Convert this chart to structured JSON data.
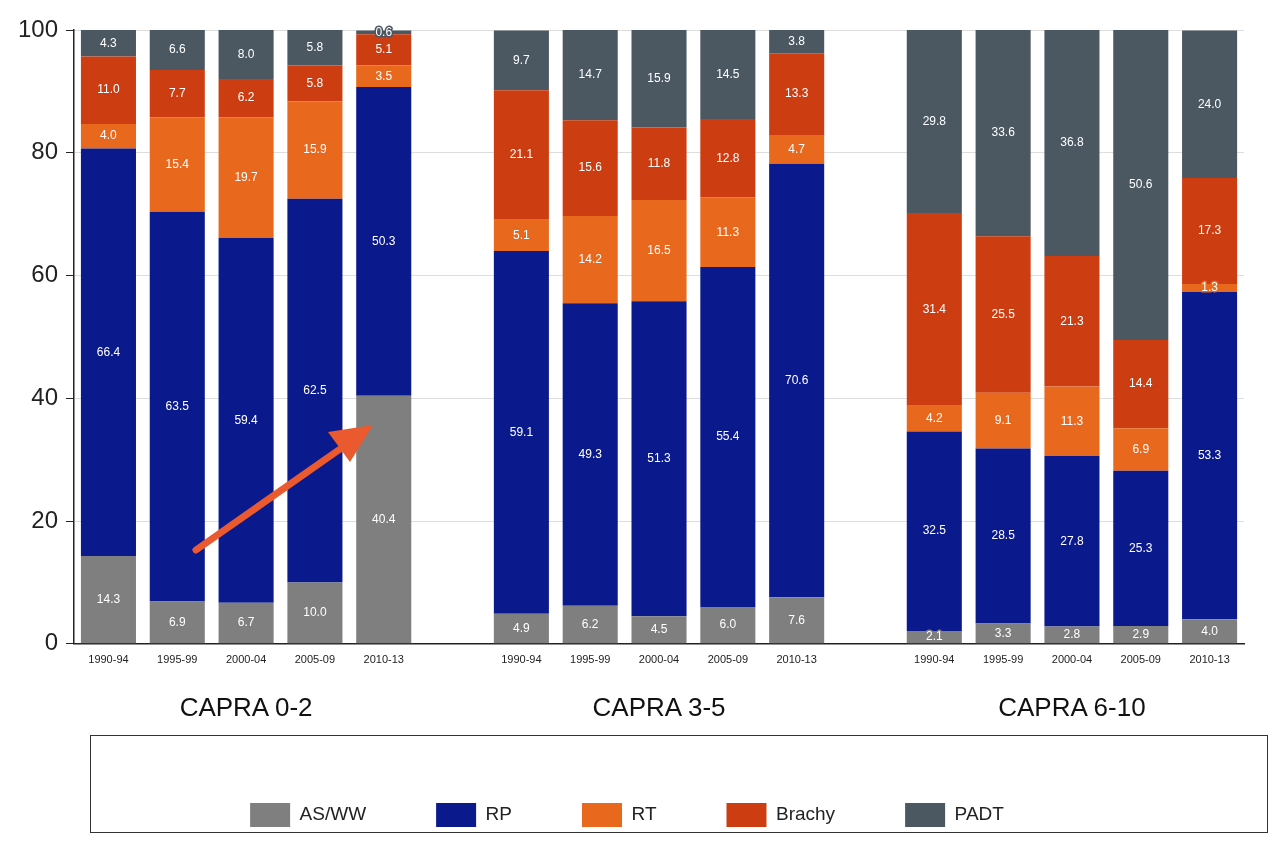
{
  "chart_data": {
    "type": "bar",
    "stacked": true,
    "categories": [
      "1990-94",
      "1995-99",
      "2000-04",
      "2005-09",
      "2010-13",
      null,
      "1990-94",
      "1995-99",
      "2000-04",
      "2005-09",
      "2010-13",
      null,
      "1990-94",
      "1995-99",
      "2000-04",
      "2005-09",
      "2010-13"
    ],
    "annotations": [
      "CAPRA 0-2",
      "CAPRA 3-5",
      "CAPRA 6-10"
    ],
    "ylim": [
      0,
      100
    ],
    "yticks": [
      0,
      20,
      40,
      60,
      80,
      100
    ],
    "grid": "y",
    "legend": "bottom",
    "series": [
      {
        "name": "AS/WW",
        "color": "#7f7f7f",
        "values": [
          14.3,
          6.9,
          6.7,
          10.0,
          40.4,
          null,
          4.9,
          6.2,
          4.5,
          6.0,
          7.6,
          null,
          2.1,
          3.3,
          2.8,
          2.9,
          4.0
        ],
        "value_labels": [
          "14.3",
          "6.9",
          "6.7",
          "10.0",
          "40.4",
          null,
          "4.9",
          "6.2",
          "4.5",
          "6.0",
          "7.6",
          null,
          "2.1",
          "3.3",
          "2.8",
          "2.9",
          "4.0"
        ]
      },
      {
        "name": "RP",
        "color": "#0a1a8c",
        "values": [
          66.4,
          63.5,
          59.4,
          62.5,
          50.3,
          null,
          59.1,
          49.3,
          51.3,
          55.4,
          70.6,
          null,
          32.5,
          28.5,
          27.8,
          25.3,
          53.3
        ],
        "value_labels": [
          "66.4",
          "63.5",
          "59.4",
          "62.5",
          "50.3",
          null,
          "59.1",
          "49.3",
          "51.3",
          "55.4",
          "70.6",
          null,
          "32.5",
          "28.5",
          "27.8",
          "25.3",
          "53.3"
        ]
      },
      {
        "name": "RT",
        "color": "#e8681e",
        "values": [
          4.0,
          15.4,
          19.7,
          15.9,
          3.5,
          null,
          5.1,
          14.2,
          16.5,
          11.3,
          4.7,
          null,
          4.2,
          9.1,
          11.3,
          6.9,
          1.3
        ],
        "value_labels": [
          "4.0",
          "15.4",
          "19.7",
          "15.9",
          "3.5",
          null,
          "5.1",
          "14.2",
          "16.5",
          "11.3",
          "4.7",
          null,
          "4.2",
          "9.1",
          "11.3",
          "6.9",
          "1.3"
        ]
      },
      {
        "name": "Brachy",
        "color": "#cc3d12",
        "values": [
          11.0,
          7.7,
          6.2,
          5.8,
          5.1,
          null,
          21.1,
          15.6,
          11.8,
          12.8,
          13.3,
          null,
          31.4,
          25.5,
          21.3,
          14.4,
          17.3
        ],
        "value_labels": [
          "11.0",
          "7.7",
          "6.2",
          "5.8",
          "5.1",
          null,
          "21.1",
          "15.6",
          "11.8",
          "12.8",
          "13.3",
          null,
          "31.4",
          "25.5",
          "21.3",
          "14.4",
          "17.3"
        ]
      },
      {
        "name": "PADT",
        "color": "#4b5862",
        "values": [
          4.3,
          6.6,
          8.0,
          5.8,
          0.6,
          null,
          9.7,
          14.7,
          15.9,
          14.5,
          3.8,
          null,
          29.8,
          33.6,
          36.8,
          50.6,
          24.0
        ],
        "value_labels": [
          "4.3",
          "6.6",
          "8.0",
          "5.8",
          "0.6",
          null,
          "9.7",
          "14.7",
          "15.9",
          "14.5",
          "3.8",
          null,
          "29.8",
          "33.6",
          "36.8",
          "50.6",
          "24.0"
        ]
      }
    ]
  }
}
